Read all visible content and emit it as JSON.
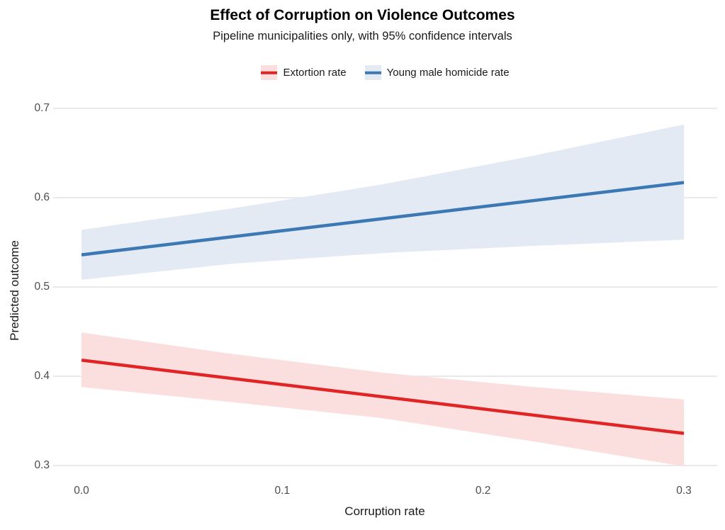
{
  "chart_data": {
    "type": "line",
    "title": "Effect of Corruption on Violence Outcomes",
    "subtitle": "Pipeline municipalities only, with 95% confidence intervals",
    "xlabel": "Corruption rate",
    "ylabel": "Predicted outcome",
    "xlim": [
      0.0,
      0.3
    ],
    "ylim": [
      0.3,
      0.7
    ],
    "grid": "horizontal-only",
    "grid_color": "#E9E9E9",
    "background_color": "#FFFFFF",
    "legend_position": "top-center",
    "ci_level": "95%",
    "xticks": [
      {
        "value": 0.0,
        "label": "0.0"
      },
      {
        "value": 0.1,
        "label": "0.1"
      },
      {
        "value": 0.2,
        "label": "0.2"
      },
      {
        "value": 0.3,
        "label": "0.3"
      }
    ],
    "yticks": [
      {
        "value": 0.3,
        "label": "0.3"
      },
      {
        "value": 0.4,
        "label": "0.4"
      },
      {
        "value": 0.5,
        "label": "0.5"
      },
      {
        "value": 0.6,
        "label": "0.6"
      },
      {
        "value": 0.7,
        "label": "0.7"
      }
    ],
    "series": [
      {
        "id": "extortion-rate",
        "name": "Extortion rate",
        "color": "#E12424",
        "ribbon_color": "#FBDEDE",
        "x": [
          0.0,
          0.3
        ],
        "y": [
          0.418,
          0.336
        ],
        "ci_x": [
          0.0,
          0.075,
          0.15,
          0.225,
          0.3
        ],
        "ci_upper": [
          0.449,
          0.425,
          0.404,
          0.388,
          0.374
        ],
        "ci_lower": [
          0.388,
          0.371,
          0.353,
          0.327,
          0.299
        ]
      },
      {
        "id": "young-male-homicide-rate",
        "name": "Young male homicide rate",
        "color": "#3C79B4",
        "ribbon_color": "#E4EAF4",
        "x": [
          0.0,
          0.3
        ],
        "y": [
          0.536,
          0.617
        ],
        "ci_x": [
          0.0,
          0.075,
          0.15,
          0.225,
          0.3
        ],
        "ci_upper": [
          0.564,
          0.588,
          0.615,
          0.647,
          0.682
        ],
        "ci_lower": [
          0.508,
          0.526,
          0.538,
          0.546,
          0.553
        ]
      }
    ]
  }
}
